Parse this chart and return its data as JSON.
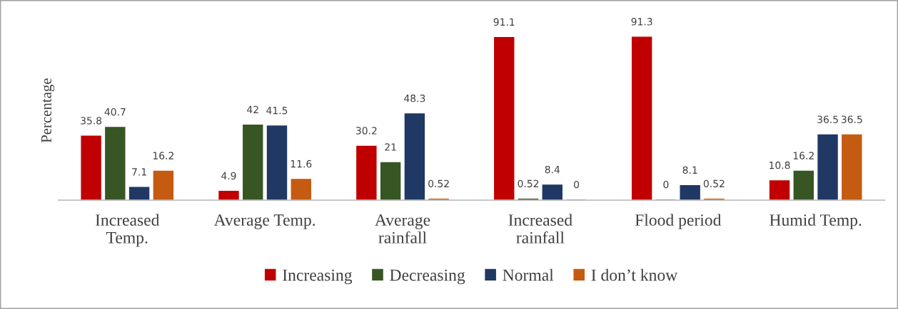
{
  "chart_data": {
    "type": "bar",
    "ylabel": "Percentage",
    "categories": [
      "Increased\nTemp.",
      "Average Temp.",
      "Average\nrainfall",
      "Increased\nrainfall",
      "Flood period",
      "Humid Temp."
    ],
    "series": [
      {
        "name": "Increasing",
        "color": "#c00000",
        "values": [
          35.8,
          4.9,
          30.2,
          91.1,
          91.3,
          10.8
        ]
      },
      {
        "name": "Decreasing",
        "color": "#375623",
        "values": [
          40.7,
          42,
          21,
          0.52,
          0,
          16.2
        ]
      },
      {
        "name": "Normal",
        "color": "#1f3864",
        "values": [
          7.1,
          41.5,
          48.3,
          8.4,
          8.1,
          36.5
        ]
      },
      {
        "name": "I don’t know",
        "color": "#c55a11",
        "values": [
          16.2,
          11.6,
          0.52,
          0,
          0.52,
          36.5
        ]
      }
    ],
    "data_labels": true,
    "legend": "bottom",
    "grid": false
  }
}
